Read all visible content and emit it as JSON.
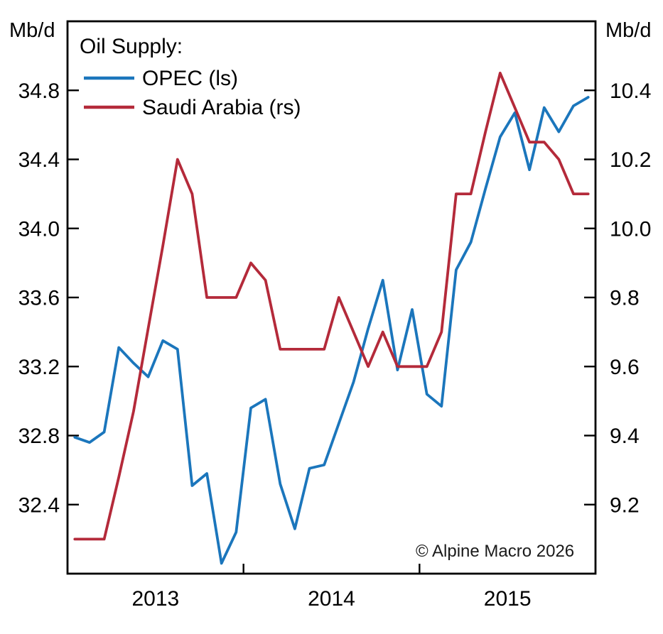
{
  "chart_data": {
    "type": "line",
    "title": "Oil Supply:",
    "frequency": "monthly",
    "x_start": "2013-01",
    "x_end": "2015-12",
    "x_tick_boundary_months": [
      12,
      24
    ],
    "x_year_labels": [
      {
        "label": "2013",
        "center_month": 6
      },
      {
        "label": "2014",
        "center_month": 18
      },
      {
        "label": "2015",
        "center_month": 30
      }
    ],
    "left_axis": {
      "unit": "Mb/d",
      "min": 32.0,
      "max": 35.2,
      "ticks": [
        "32.4",
        "32.8",
        "33.2",
        "33.6",
        "34.0",
        "34.4",
        "34.8"
      ]
    },
    "right_axis": {
      "unit": "Mb/d",
      "min": 9.0,
      "max": 10.6,
      "ticks": [
        "9.2",
        "9.4",
        "9.6",
        "9.8",
        "10.0",
        "10.2",
        "10.4"
      ]
    },
    "series": [
      {
        "name": "OPEC (ls)",
        "axis": "left",
        "color": "#1b76bc",
        "values": [
          32.79,
          32.76,
          32.82,
          33.31,
          33.22,
          33.14,
          33.35,
          33.3,
          32.51,
          32.58,
          32.06,
          32.24,
          32.96,
          33.01,
          32.52,
          32.26,
          32.61,
          32.63,
          32.87,
          33.11,
          33.42,
          33.7,
          33.18,
          33.53,
          33.04,
          32.97,
          33.76,
          33.92,
          34.23,
          34.53,
          34.67,
          34.34,
          34.7,
          34.56,
          34.71,
          34.76
        ]
      },
      {
        "name": "Saudi Arabia (rs)",
        "axis": "right",
        "color": "#b42a3a",
        "values": [
          9.1,
          9.1,
          9.1,
          9.28,
          9.47,
          9.71,
          9.95,
          10.2,
          10.1,
          9.8,
          9.8,
          9.8,
          9.9,
          9.85,
          9.65,
          9.65,
          9.65,
          9.65,
          9.8,
          9.7,
          9.6,
          9.7,
          9.6,
          9.6,
          9.6,
          9.7,
          10.1,
          10.1,
          10.28,
          10.45,
          10.35,
          10.25,
          10.25,
          10.2,
          10.1,
          10.1
        ]
      }
    ],
    "legend_position": "top-left",
    "grid": false,
    "annotation": "© Alpine Macro 2026"
  }
}
